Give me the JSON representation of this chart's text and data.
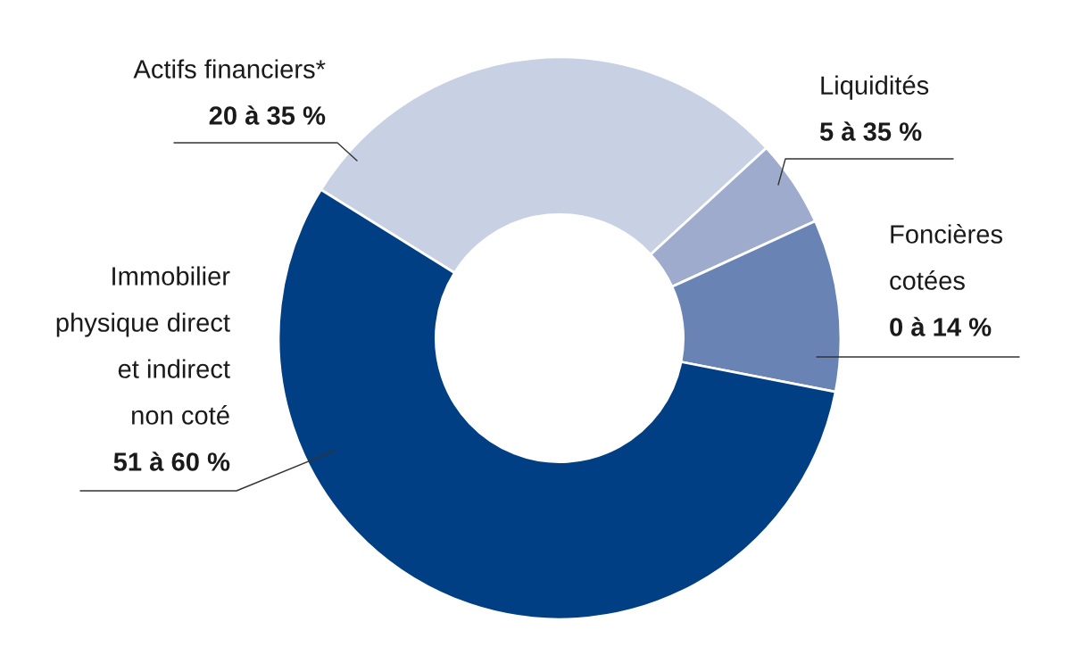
{
  "chart_data": {
    "type": "donut",
    "categories": [
      "Actifs financiers*",
      "Liquidités",
      "Foncières\ncotées",
      "Immobilier\nphysique direct\net indirect\nnon coté"
    ],
    "values": [
      29.3,
      5.0,
      9.9,
      55.8
    ],
    "colors": [
      "#c8d1e3",
      "#9eabcd",
      "#6a83b5",
      "#003f84"
    ],
    "annotations": [
      "20 à 35 %",
      "5 à 35 %",
      "0 à 14 %",
      "51 à 60 %"
    ]
  }
}
